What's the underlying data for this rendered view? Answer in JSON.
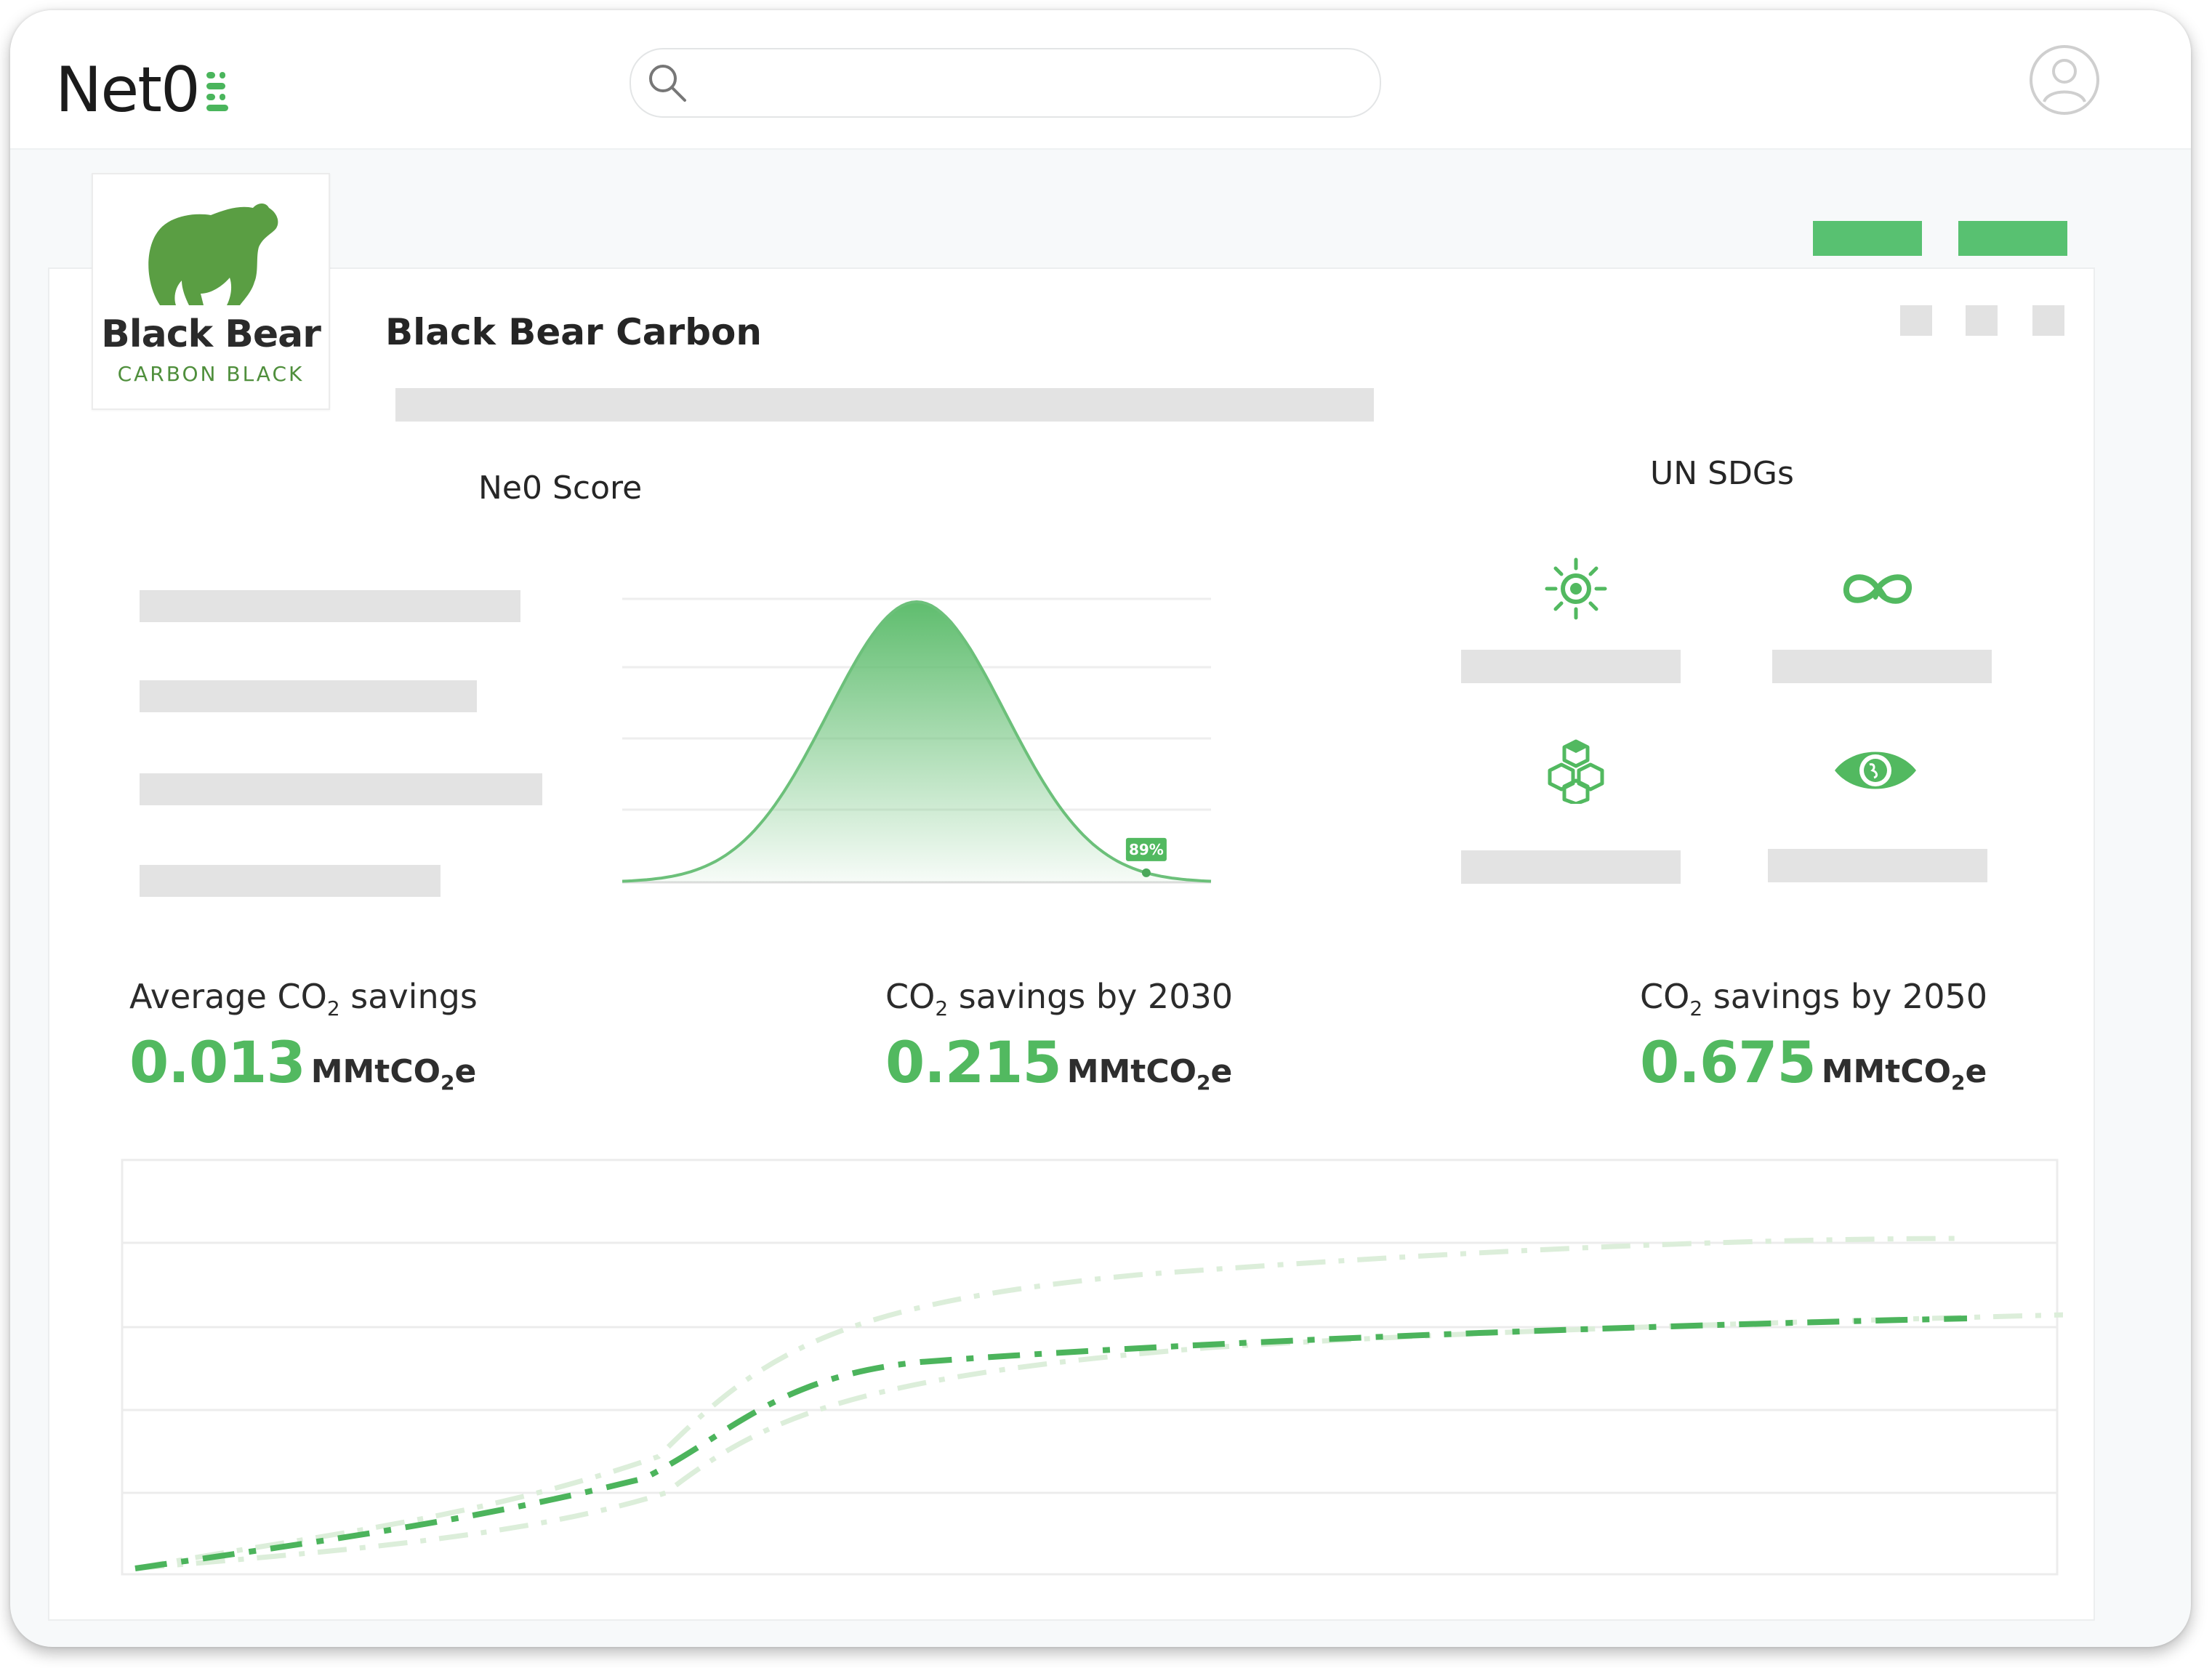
{
  "app": {
    "brand": "Net0",
    "brand_icon": "net0-stack-mark",
    "accent_color": "#52b960"
  },
  "search": {
    "icon": "search-icon",
    "placeholder": ""
  },
  "user": {
    "icon": "user-avatar-icon"
  },
  "company": {
    "logo_name": "Black Bear",
    "logo_sub": "CARBON BLACK",
    "name": "Black Bear Carbon"
  },
  "score": {
    "title": "Ne0 Score",
    "marker_label": "89%"
  },
  "sdgs": {
    "title": "UN SDGs",
    "icons": [
      "sun-energy-icon",
      "infinity-loop-icon",
      "cubes-icon",
      "eye-globe-icon"
    ]
  },
  "stats": [
    {
      "label_pre": "Average CO",
      "label_sub": "2",
      "label_post": " savings",
      "value": "0.013",
      "unit_pre": "MMtCO",
      "unit_sub": "2",
      "unit_post": "e"
    },
    {
      "label_pre": "CO",
      "label_sub": "2",
      "label_post": " savings by 2030",
      "value": "0.215",
      "unit_pre": "MMtCO",
      "unit_sub": "2",
      "unit_post": "e"
    },
    {
      "label_pre": "CO",
      "label_sub": "2",
      "label_post": " savings by 2050",
      "value": "0.675",
      "unit_pre": "MMtCO",
      "unit_sub": "2",
      "unit_post": "e"
    }
  ],
  "colors": {
    "primary_line": "#4cb45c",
    "bound_line": "#dceeda",
    "button": "#58c171"
  }
}
